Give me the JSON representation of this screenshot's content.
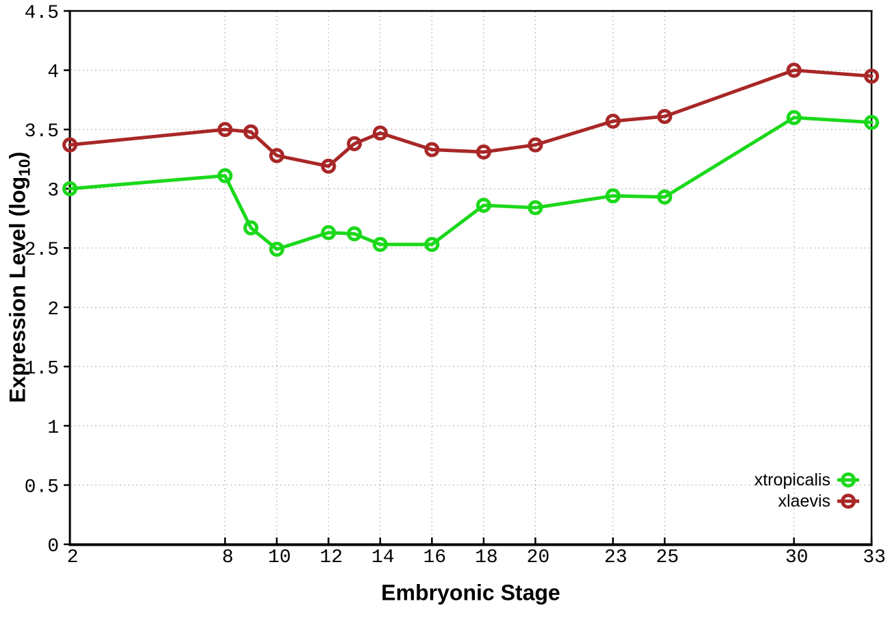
{
  "chart_data": {
    "type": "line",
    "xlabel": "Embryonic Stage",
    "ylabel_prefix": "Expression Level (log",
    "ylabel_sub": "10",
    "ylabel_suffix": ")",
    "xlim": [
      2,
      33
    ],
    "ylim": [
      0,
      4.5
    ],
    "xticks": [
      2,
      8,
      10,
      12,
      14,
      16,
      18,
      20,
      23,
      25,
      30,
      33
    ],
    "xtick_labels": [
      "2",
      "8",
      "10",
      "12",
      "14",
      "16",
      "18",
      "20",
      "23",
      "25",
      "30",
      "33"
    ],
    "yticks": [
      0,
      0.5,
      1,
      1.5,
      2,
      2.5,
      3,
      3.5,
      4,
      4.5
    ],
    "ytick_labels": [
      "0",
      "0.5",
      "1",
      "1.5",
      "2",
      "2.5",
      "3",
      "3.5",
      "4",
      "4.5"
    ],
    "grid": true,
    "legend_position": "bottom-right",
    "x": [
      2,
      8,
      9,
      10,
      12,
      13,
      14,
      16,
      18,
      20,
      23,
      25,
      30,
      33
    ],
    "series": [
      {
        "name": "xtropicalis",
        "color": "#1bd81b",
        "marker": "open-circle",
        "values": [
          3.0,
          3.11,
          2.67,
          2.49,
          2.63,
          2.62,
          2.53,
          2.53,
          2.86,
          2.84,
          2.94,
          2.93,
          3.6,
          3.56
        ]
      },
      {
        "name": "xlaevis",
        "color": "#a82727",
        "marker": "open-circle",
        "values": [
          3.37,
          3.5,
          3.48,
          3.28,
          3.19,
          3.38,
          3.47,
          3.33,
          3.31,
          3.37,
          3.57,
          3.61,
          4.0,
          3.95
        ]
      }
    ],
    "colors": {
      "background": "#ffffff",
      "grid": "#b0b0b0",
      "axis": "#000000",
      "text": "#000000"
    }
  }
}
